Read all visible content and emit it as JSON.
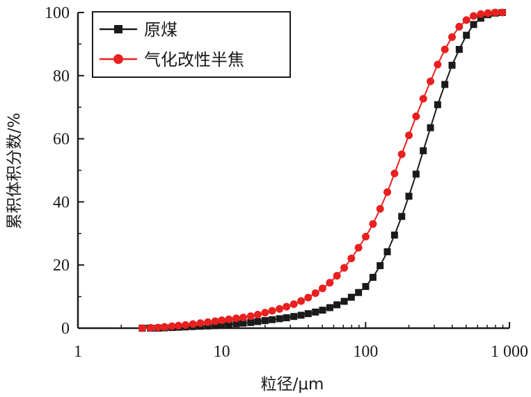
{
  "chart_data": {
    "type": "line",
    "xscale": "log",
    "xlim": [
      1,
      1000
    ],
    "ylim": [
      0,
      100
    ],
    "xlabel": "粒径/μm",
    "ylabel": "累积体积分数/%",
    "x_tick_labels": [
      "1",
      "10",
      "100",
      "1 000"
    ],
    "y_tick_labels": [
      "0",
      "20",
      "40",
      "60",
      "80",
      "100"
    ],
    "legend_position": "top-left",
    "grid": false,
    "series": [
      {
        "name": "原煤",
        "color": "#1a1a1a",
        "marker": "square",
        "x": [
          2.8,
          3.2,
          3.6,
          4.0,
          4.5,
          5.0,
          5.6,
          6.3,
          7.1,
          8.0,
          9.0,
          10.0,
          11.2,
          12.6,
          14.1,
          15.9,
          17.8,
          20.0,
          22.4,
          25.2,
          28.2,
          31.7,
          35.6,
          39.9,
          44.8,
          50.2,
          56.4,
          63.2,
          71.0,
          79.6,
          89.3,
          100.2,
          112.5,
          126.2,
          141.6,
          158.9,
          178.3,
          200.0,
          224.4,
          251.8,
          282.5,
          317.0,
          355.7,
          399.0,
          447.7,
          502.4,
          563.7,
          632.5,
          709.6,
          796.2,
          893.4
        ],
        "y": [
          0.0,
          0.0,
          0.0,
          0.1,
          0.2,
          0.3,
          0.4,
          0.5,
          0.6,
          0.7,
          0.8,
          1.0,
          1.2,
          1.4,
          1.6,
          1.8,
          2.1,
          2.4,
          2.7,
          3.0,
          3.3,
          3.7,
          4.1,
          4.6,
          5.1,
          5.7,
          6.5,
          7.4,
          8.5,
          9.8,
          11.3,
          13.2,
          16.1,
          19.8,
          24.2,
          29.5,
          35.4,
          41.8,
          48.8,
          56.2,
          63.5,
          70.8,
          77.2,
          83.3,
          88.3,
          92.8,
          96.2,
          98.2,
          99.3,
          99.8,
          100.0
        ]
      },
      {
        "name": "气化改性半焦",
        "color": "#e8201f",
        "marker": "circle",
        "x": [
          2.8,
          3.2,
          3.6,
          4.0,
          4.5,
          5.0,
          5.6,
          6.3,
          7.1,
          8.0,
          9.0,
          10.0,
          11.2,
          12.6,
          14.1,
          15.9,
          17.8,
          20.0,
          22.4,
          25.2,
          28.2,
          31.7,
          35.6,
          39.9,
          44.8,
          50.2,
          56.4,
          63.2,
          71.0,
          79.6,
          89.3,
          100.2,
          112.5,
          126.2,
          141.6,
          158.9,
          178.3,
          200.0,
          224.4,
          251.8,
          282.5,
          317.0,
          355.7,
          399.0,
          447.7,
          502.4,
          563.7,
          632.5,
          709.6,
          796.2,
          893.4
        ],
        "y": [
          0.0,
          0.1,
          0.2,
          0.4,
          0.6,
          0.8,
          1.0,
          1.3,
          1.6,
          1.9,
          2.2,
          2.5,
          2.8,
          3.1,
          3.4,
          3.8,
          4.3,
          4.9,
          5.5,
          6.1,
          6.8,
          7.6,
          8.6,
          9.7,
          11.1,
          12.6,
          14.4,
          16.6,
          19.1,
          22.1,
          25.5,
          29.0,
          33.0,
          37.8,
          43.1,
          49.0,
          55.1,
          61.1,
          67.1,
          72.7,
          78.2,
          83.5,
          88.3,
          92.2,
          95.5,
          97.6,
          98.9,
          99.5,
          99.8,
          100.0,
          100.0
        ]
      }
    ]
  }
}
